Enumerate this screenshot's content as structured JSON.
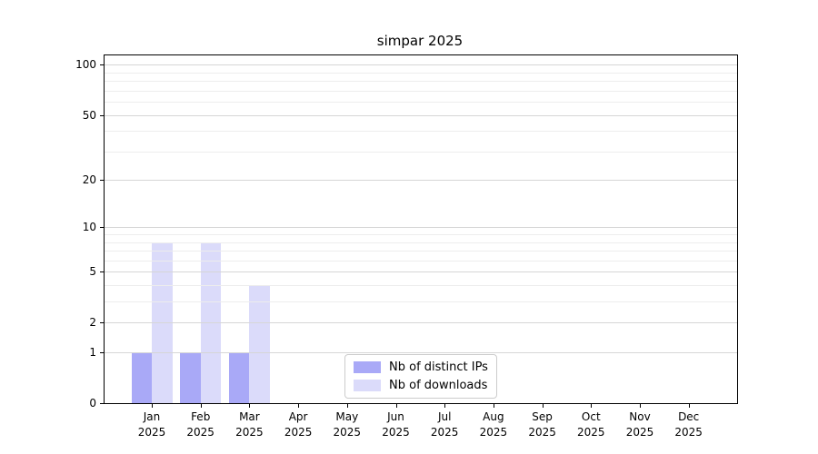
{
  "title": "simpar 2025",
  "colors": {
    "background": "#ffffff",
    "bar_distinct_ips": "#a9a9f7",
    "bar_downloads": "#dbdbfa",
    "grid_major": "#d6d6d6",
    "grid_minor": "#ededed",
    "axis": "#000000",
    "legend_border": "#cccccc",
    "text": "#000000"
  },
  "legend": {
    "items": [
      {
        "label": "Nb of distinct IPs",
        "color_key": "bar_distinct_ips"
      },
      {
        "label": "Nb of downloads",
        "color_key": "bar_downloads"
      }
    ]
  },
  "chart_data": {
    "type": "bar",
    "title": "simpar 2025",
    "categories": [
      "Jan 2025",
      "Feb 2025",
      "Mar 2025",
      "Apr 2025",
      "May 2025",
      "Jun 2025",
      "Jul 2025",
      "Aug 2025",
      "Sep 2025",
      "Oct 2025",
      "Nov 2025",
      "Dec 2025"
    ],
    "series": [
      {
        "name": "Nb of distinct IPs",
        "color": "#a9a9f7",
        "values": [
          1,
          1,
          1,
          0,
          0,
          0,
          0,
          0,
          0,
          0,
          0,
          0
        ]
      },
      {
        "name": "Nb of downloads",
        "color": "#dbdbfa",
        "values": [
          8,
          8,
          4,
          0,
          0,
          0,
          0,
          0,
          0,
          0,
          0,
          0
        ]
      }
    ],
    "xlabel": "",
    "ylabel": "",
    "y_scale": "log1p",
    "y_ticks": [
      0,
      1,
      2,
      5,
      10,
      20,
      50,
      100
    ],
    "y_minor_gridlines": [
      3,
      4,
      6,
      7,
      8,
      9,
      30,
      40,
      60,
      70,
      80,
      90
    ],
    "ylim": [
      0,
      113
    ],
    "grid": "horizontal",
    "legend_position": "lower-center-inside"
  }
}
